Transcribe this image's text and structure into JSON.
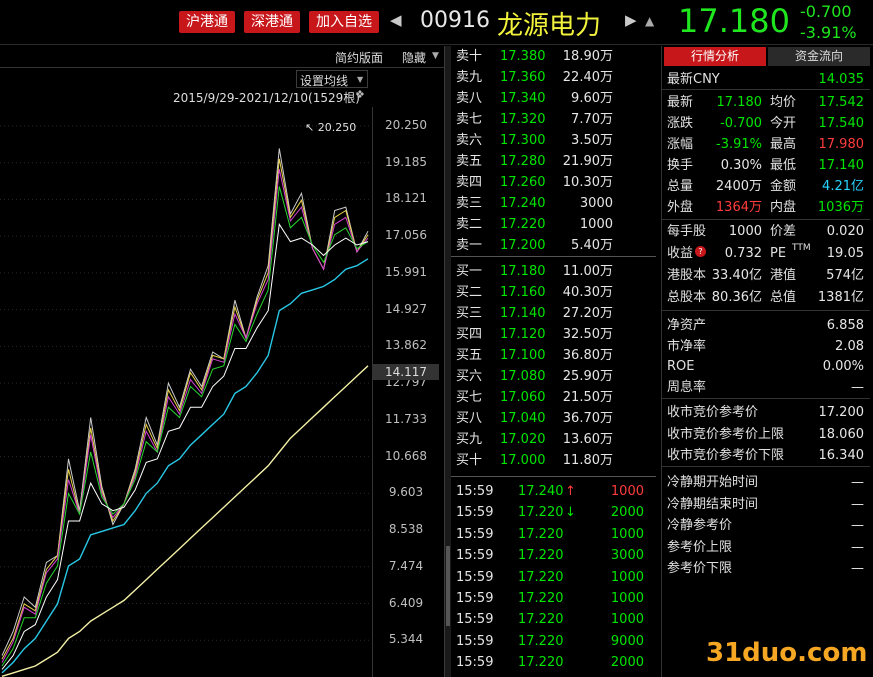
{
  "header": {
    "badges": [
      "沪港通",
      "深港通",
      "加入自选"
    ],
    "code": "00916",
    "name": "龙源电力",
    "price": "17.180",
    "change": "-0.700",
    "change_pct": "-3.91%"
  },
  "chart_toolbar": {
    "simple_layout": "简约版面",
    "hide": "隐藏",
    "set_ma": "设置均线",
    "range": "2015/9/29-2021/12/10(1529根)",
    "peak_label": "20.250",
    "current_label": "14.117"
  },
  "chart_data": {
    "type": "line",
    "title": "",
    "range_text": "2015/9/29-2021/12/10(1529根)",
    "y_ticks": [
      "20.250",
      "19.185",
      "18.121",
      "17.056",
      "15.991",
      "14.927",
      "13.862",
      "12.797",
      "11.733",
      "10.668",
      "9.603",
      "8.538",
      "7.474",
      "6.409",
      "5.344"
    ],
    "ylim": [
      4.28,
      20.8
    ],
    "grid": true,
    "x_start": "2015/9/29",
    "x_end": "2021/12/10",
    "series": [
      {
        "color": "#cccccc",
        "values": [
          4.9,
          5.6,
          6.6,
          6.3,
          7.6,
          7.8,
          10.6,
          9.1,
          11.8,
          9.8,
          8.7,
          9.3,
          10.3,
          11.8,
          11.0,
          12.8,
          12.1,
          13.2,
          12.7,
          13.7,
          13.5,
          15.2,
          14.1,
          15.3,
          16.2,
          19.6,
          17.7,
          18.3,
          16.7,
          16.1,
          17.8,
          17.9,
          16.6,
          17.2
        ]
      },
      {
        "color": "#e8d14a",
        "values": [
          4.8,
          5.4,
          6.4,
          6.2,
          7.4,
          7.8,
          10.3,
          9.0,
          11.5,
          9.7,
          8.8,
          9.3,
          10.2,
          11.6,
          10.9,
          12.6,
          12.0,
          13.1,
          12.6,
          13.6,
          13.5,
          15.0,
          14.1,
          15.2,
          16.0,
          19.3,
          17.6,
          18.1,
          16.7,
          16.1,
          17.6,
          17.8,
          16.6,
          17.1
        ]
      },
      {
        "color": "#d441d4",
        "values": [
          4.7,
          5.3,
          6.3,
          6.1,
          7.3,
          7.7,
          10.0,
          9.0,
          11.3,
          9.6,
          8.9,
          9.3,
          10.1,
          11.4,
          10.8,
          12.4,
          11.9,
          12.9,
          12.5,
          13.5,
          13.4,
          14.8,
          14.1,
          15.1,
          15.8,
          19.0,
          17.5,
          17.9,
          16.7,
          16.1,
          17.4,
          17.6,
          16.6,
          17.0
        ]
      },
      {
        "color": "#27d52e",
        "values": [
          4.6,
          5.1,
          6.0,
          6.0,
          7.0,
          7.5,
          9.6,
          9.0,
          10.8,
          9.5,
          9.0,
          9.3,
          10.0,
          11.1,
          10.8,
          12.1,
          11.8,
          12.7,
          12.4,
          13.2,
          13.3,
          14.5,
          14.0,
          14.8,
          15.5,
          18.5,
          17.3,
          17.6,
          16.8,
          16.3,
          17.1,
          17.3,
          16.7,
          16.9
        ]
      },
      {
        "color": "#ffffff",
        "values": [
          4.5,
          4.9,
          5.6,
          5.8,
          6.6,
          7.1,
          8.8,
          8.8,
          9.9,
          9.3,
          9.1,
          9.2,
          9.7,
          10.5,
          10.6,
          11.4,
          11.5,
          12.1,
          12.1,
          12.7,
          13.0,
          13.8,
          13.8,
          14.4,
          14.9,
          17.4,
          16.9,
          17.0,
          16.8,
          16.5,
          16.8,
          17.0,
          16.8,
          16.9
        ]
      },
      {
        "color": "#29c8e6",
        "values": [
          4.4,
          4.7,
          5.1,
          5.4,
          5.9,
          6.4,
          7.5,
          7.7,
          8.4,
          8.5,
          8.6,
          8.7,
          9.1,
          9.6,
          9.9,
          10.4,
          10.6,
          11.0,
          11.3,
          11.6,
          11.9,
          12.5,
          12.7,
          13.1,
          13.6,
          14.9,
          15.1,
          15.4,
          15.5,
          15.6,
          15.8,
          16.1,
          16.2,
          16.4
        ]
      },
      {
        "color": "#f3f0a6",
        "values": [
          4.3,
          4.4,
          4.5,
          4.6,
          4.8,
          5.0,
          5.4,
          5.6,
          5.9,
          6.1,
          6.3,
          6.5,
          6.8,
          7.1,
          7.4,
          7.7,
          8.0,
          8.3,
          8.6,
          8.9,
          9.2,
          9.5,
          9.8,
          10.1,
          10.4,
          10.8,
          11.2,
          11.5,
          11.8,
          12.1,
          12.4,
          12.7,
          13.0,
          13.3
        ]
      }
    ]
  },
  "order_book": {
    "asks": [
      {
        "label": "卖十",
        "price": "17.380",
        "vol": "18.90万"
      },
      {
        "label": "卖九",
        "price": "17.360",
        "vol": "22.40万"
      },
      {
        "label": "卖八",
        "price": "17.340",
        "vol": "9.60万"
      },
      {
        "label": "卖七",
        "price": "17.320",
        "vol": "7.70万"
      },
      {
        "label": "卖六",
        "price": "17.300",
        "vol": "3.50万"
      },
      {
        "label": "卖五",
        "price": "17.280",
        "vol": "21.90万"
      },
      {
        "label": "卖四",
        "price": "17.260",
        "vol": "10.30万"
      },
      {
        "label": "卖三",
        "price": "17.240",
        "vol": "3000"
      },
      {
        "label": "卖二",
        "price": "17.220",
        "vol": "1000"
      },
      {
        "label": "卖一",
        "price": "17.200",
        "vol": "5.40万"
      }
    ],
    "bids": [
      {
        "label": "买一",
        "price": "17.180",
        "vol": "11.00万"
      },
      {
        "label": "买二",
        "price": "17.160",
        "vol": "40.30万"
      },
      {
        "label": "买三",
        "price": "17.140",
        "vol": "27.20万"
      },
      {
        "label": "买四",
        "price": "17.120",
        "vol": "32.50万"
      },
      {
        "label": "买五",
        "price": "17.100",
        "vol": "36.80万"
      },
      {
        "label": "买六",
        "price": "17.080",
        "vol": "25.90万"
      },
      {
        "label": "买七",
        "price": "17.060",
        "vol": "21.50万"
      },
      {
        "label": "买八",
        "price": "17.040",
        "vol": "36.70万"
      },
      {
        "label": "买九",
        "price": "17.020",
        "vol": "13.60万"
      },
      {
        "label": "买十",
        "price": "17.000",
        "vol": "11.80万"
      }
    ]
  },
  "ticks": [
    {
      "time": "15:59",
      "price": "17.240",
      "arrow": "↑",
      "vol": "1000",
      "vol_color": "red"
    },
    {
      "time": "15:59",
      "price": "17.220",
      "arrow": "↓",
      "vol": "2000",
      "vol_color": "green"
    },
    {
      "time": "15:59",
      "price": "17.220",
      "arrow": "",
      "vol": "1000",
      "vol_color": "green"
    },
    {
      "time": "15:59",
      "price": "17.220",
      "arrow": "",
      "vol": "3000",
      "vol_color": "green"
    },
    {
      "time": "15:59",
      "price": "17.220",
      "arrow": "",
      "vol": "1000",
      "vol_color": "green"
    },
    {
      "time": "15:59",
      "price": "17.220",
      "arrow": "",
      "vol": "1000",
      "vol_color": "green"
    },
    {
      "time": "15:59",
      "price": "17.220",
      "arrow": "",
      "vol": "1000",
      "vol_color": "green"
    },
    {
      "time": "15:59",
      "price": "17.220",
      "arrow": "",
      "vol": "9000",
      "vol_color": "green"
    },
    {
      "time": "15:59",
      "price": "17.220",
      "arrow": "",
      "vol": "2000",
      "vol_color": "green"
    }
  ],
  "right_tabs": [
    "行情分析",
    "资金流向"
  ],
  "quote": {
    "latest_cny_label": "最新CNY",
    "latest_cny": "14.035",
    "grid": [
      {
        "l1": "最新",
        "v1": "17.180",
        "c1": "green",
        "l2": "均价",
        "v2": "17.542",
        "c2": "green"
      },
      {
        "l1": "涨跌",
        "v1": "-0.700",
        "c1": "green",
        "l2": "今开",
        "v2": "17.540",
        "c2": "green"
      },
      {
        "l1": "涨幅",
        "v1": "-3.91%",
        "c1": "green",
        "l2": "最高",
        "v2": "17.980",
        "c2": "red"
      },
      {
        "l1": "换手",
        "v1": "0.30%",
        "c1": "white",
        "l2": "最低",
        "v2": "17.140",
        "c2": "green"
      },
      {
        "l1": "总量",
        "v1": "2400万",
        "c1": "white",
        "l2": "金额",
        "v2": "4.21亿",
        "c2": "cyan"
      },
      {
        "l1": "外盘",
        "v1": "1364万",
        "c1": "red",
        "l2": "内盘",
        "v2": "1036万",
        "c2": "green"
      }
    ],
    "grid2": [
      {
        "l1": "每手股",
        "v1": "1000",
        "l2": "价差",
        "v2": "0.020"
      },
      {
        "l1": "收益",
        "v1": "0.732",
        "l2": "PE",
        "v2": "19.05"
      },
      {
        "l1": "港股本",
        "v1": "33.40亿",
        "l2": "港值",
        "v2": "574亿"
      },
      {
        "l1": "总股本",
        "v1": "80.36亿",
        "l2": "总值",
        "v2": "1381亿"
      }
    ],
    "pe_sup": "TTM",
    "info_badge": "?",
    "single": [
      {
        "label": "净资产",
        "value": "6.858"
      },
      {
        "label": "市净率",
        "value": "2.08"
      },
      {
        "label": "ROE",
        "value": "0.00%"
      },
      {
        "label": "周息率",
        "value": "—"
      }
    ],
    "auction": [
      {
        "label": "收市竞价参考价",
        "value": "17.200"
      },
      {
        "label": "收市竞价参考价上限",
        "value": "18.060"
      },
      {
        "label": "收市竞价参考价下限",
        "value": "16.340"
      }
    ],
    "cooling": [
      {
        "label": "冷静期开始时间",
        "value": "—"
      },
      {
        "label": "冷静期结束时间",
        "value": "—"
      },
      {
        "label": "冷静参考价",
        "value": "—"
      },
      {
        "label": "参考价上限",
        "value": "—"
      },
      {
        "label": "参考价下限",
        "value": "—"
      }
    ]
  },
  "watermark": "31duo.com"
}
